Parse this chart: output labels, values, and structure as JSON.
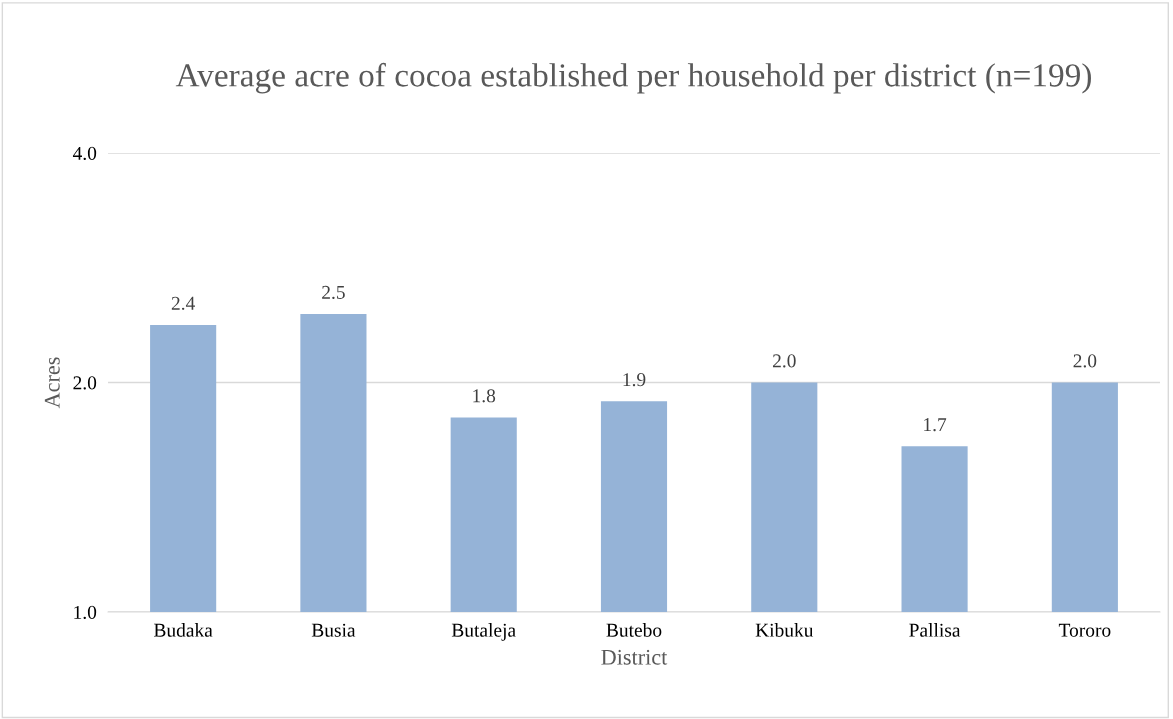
{
  "chart_data": {
    "type": "bar",
    "title": "Average acre of cocoa established per household per district (n=199)",
    "xlabel": "District",
    "ylabel": "Acres",
    "categories": [
      "Budaka",
      "Busia",
      "Butaleja",
      "Butebo",
      "Kibuku",
      "Pallisa",
      "Tororo"
    ],
    "values": [
      2.38,
      2.46,
      1.8,
      1.89,
      2.0,
      1.65,
      2.0
    ],
    "value_labels": [
      "2.4",
      "2.5",
      "1.8",
      "1.9",
      "2.0",
      "1.7",
      "2.0"
    ],
    "color": "#95b3d7",
    "log": "y",
    "ylim": [
      1,
      4
    ],
    "yticks": [
      {
        "value": 1,
        "label": "1.0"
      },
      {
        "value": 2,
        "label": "2.0"
      },
      {
        "value": 4,
        "label": "4.0"
      }
    ],
    "grid": "y",
    "legend": false
  }
}
